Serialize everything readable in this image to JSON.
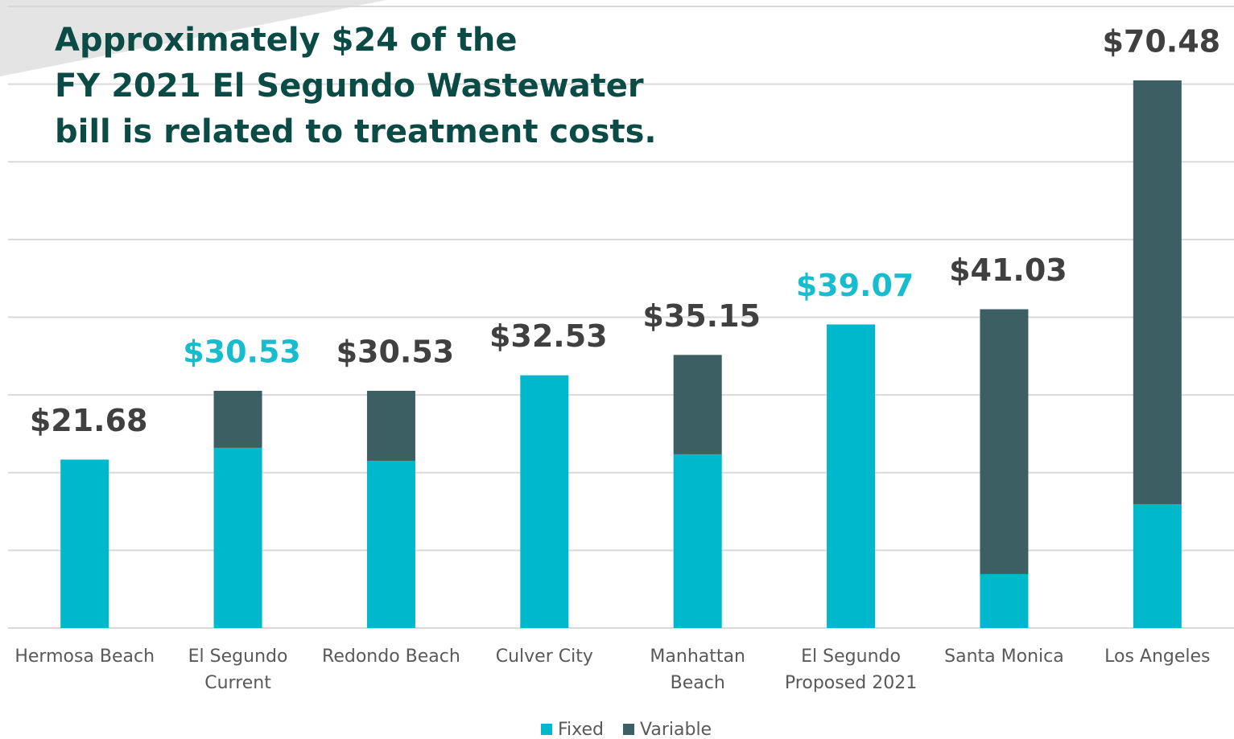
{
  "chart_data": {
    "type": "stacked_bar",
    "title_lines": [
      "Approximately $24 of the",
      "FY 2021 El Segundo Wastewater",
      "bill is related to treatment costs."
    ],
    "categories": [
      [
        "Hermosa Beach"
      ],
      [
        "El Segundo",
        "Current"
      ],
      [
        "Redondo Beach"
      ],
      [
        "Culver City"
      ],
      [
        "Manhattan",
        "Beach"
      ],
      [
        "El Segundo",
        "Proposed 2021"
      ],
      [
        "Santa Monica"
      ],
      [
        "Los Angeles"
      ]
    ],
    "series": [
      {
        "name": "Fixed",
        "color": "#00b8cc",
        "values": [
          21.68,
          23.19,
          21.53,
          32.53,
          22.36,
          39.07,
          6.94,
          15.94
        ]
      },
      {
        "name": "Variable",
        "color": "#3b5f63",
        "values": [
          0,
          7.34,
          9.0,
          0,
          12.79,
          0,
          34.09,
          54.54
        ]
      }
    ],
    "totals": [
      21.68,
      30.53,
      30.53,
      32.53,
      35.15,
      39.07,
      41.03,
      70.48
    ],
    "total_labels": [
      "$21.68",
      "$30.53",
      "$30.53",
      "$32.53",
      "$35.15",
      "$39.07",
      "$41.03",
      "$70.48"
    ],
    "total_label_colors": [
      "#404040",
      "#17bccf",
      "#404040",
      "#404040",
      "#404040",
      "#17bccf",
      "#404040",
      "#404040"
    ],
    "ylim": [
      0,
      80
    ],
    "yticks": [
      0,
      10,
      20,
      30,
      40,
      50,
      60,
      70,
      80
    ],
    "grid": true,
    "legend": "bottom"
  }
}
